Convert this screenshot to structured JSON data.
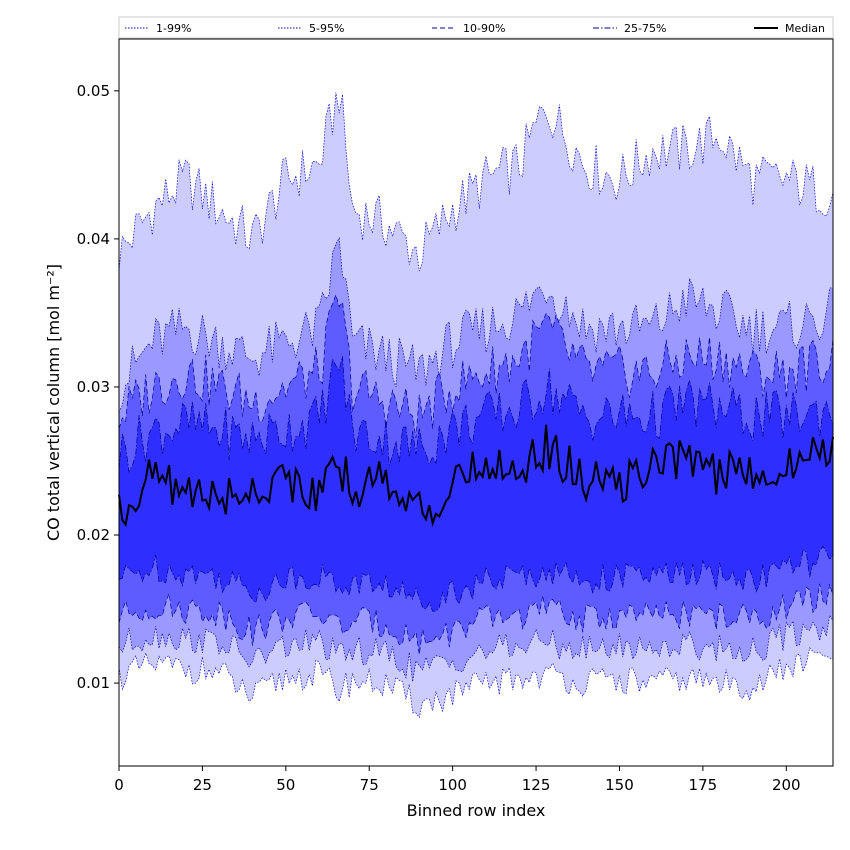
{
  "chart_data": {
    "type": "area",
    "xlabel": "Binned row index",
    "ylabel": "CO total vertical column [mol m⁻²]",
    "xlim": [
      0,
      214
    ],
    "ylim": [
      0.0044,
      0.0535
    ],
    "x_ticks": [
      0,
      25,
      50,
      75,
      100,
      125,
      150,
      175,
      200
    ],
    "x_tick_labels": [
      "0",
      "25",
      "50",
      "75",
      "100",
      "125",
      "150",
      "175",
      "200"
    ],
    "y_ticks": [
      0.01,
      0.02,
      0.03,
      0.04,
      0.05
    ],
    "y_tick_labels": [
      "0.01",
      "0.02",
      "0.03",
      "0.04",
      "0.05"
    ],
    "legend_position": "top",
    "grid": false,
    "x_anchors": [
      0,
      10,
      20,
      30,
      40,
      50,
      60,
      66,
      70,
      80,
      90,
      100,
      110,
      120,
      128,
      140,
      150,
      160,
      170,
      180,
      190,
      200,
      214
    ],
    "bands": [
      {
        "name": "1-99%",
        "fill_color": "#ccccff",
        "line_color": "#0000cc",
        "line_style": "dotted",
        "upper": [
          0.039,
          0.042,
          0.044,
          0.042,
          0.04,
          0.044,
          0.045,
          0.05,
          0.042,
          0.041,
          0.039,
          0.042,
          0.044,
          0.045,
          0.049,
          0.045,
          0.044,
          0.046,
          0.046,
          0.047,
          0.044,
          0.044,
          0.043
        ],
        "lower": [
          0.0105,
          0.0112,
          0.011,
          0.0107,
          0.009,
          0.0104,
          0.0106,
          0.0095,
          0.0102,
          0.0099,
          0.0085,
          0.0092,
          0.01,
          0.0103,
          0.0106,
          0.01,
          0.0102,
          0.01,
          0.0103,
          0.01,
          0.0098,
          0.011,
          0.012
        ]
      },
      {
        "name": "5-95%",
        "fill_color": "#9999ff",
        "line_color": "#0000aa",
        "line_style": "dotted",
        "upper": [
          0.03,
          0.033,
          0.034,
          0.033,
          0.032,
          0.033,
          0.034,
          0.04,
          0.033,
          0.032,
          0.031,
          0.033,
          0.034,
          0.035,
          0.037,
          0.034,
          0.034,
          0.034,
          0.036,
          0.035,
          0.034,
          0.034,
          0.035
        ],
        "lower": [
          0.0125,
          0.0133,
          0.013,
          0.0128,
          0.0115,
          0.0125,
          0.0128,
          0.0117,
          0.0122,
          0.012,
          0.0108,
          0.0115,
          0.0122,
          0.0125,
          0.0128,
          0.0122,
          0.0125,
          0.0124,
          0.0126,
          0.0124,
          0.0122,
          0.0132,
          0.014
        ]
      },
      {
        "name": "10-90%",
        "fill_color": "#5c5cff",
        "line_color": "#000099",
        "line_style": "dashed",
        "upper": [
          0.028,
          0.03,
          0.031,
          0.03,
          0.029,
          0.03,
          0.031,
          0.036,
          0.03,
          0.029,
          0.028,
          0.03,
          0.031,
          0.032,
          0.034,
          0.031,
          0.031,
          0.031,
          0.032,
          0.032,
          0.031,
          0.031,
          0.032
        ],
        "lower": [
          0.0145,
          0.0152,
          0.015,
          0.0148,
          0.0135,
          0.0145,
          0.0147,
          0.0138,
          0.0142,
          0.014,
          0.0128,
          0.0135,
          0.0143,
          0.0146,
          0.015,
          0.0143,
          0.0146,
          0.0145,
          0.0147,
          0.0145,
          0.0143,
          0.0152,
          0.016
        ]
      },
      {
        "name": "25-75%",
        "fill_color": "#2e2eff",
        "line_color": "#000088",
        "line_style": "dashdot",
        "upper": [
          0.0255,
          0.027,
          0.0275,
          0.027,
          0.0265,
          0.0272,
          0.0278,
          0.032,
          0.027,
          0.0265,
          0.0258,
          0.0272,
          0.028,
          0.0285,
          0.03,
          0.028,
          0.028,
          0.028,
          0.029,
          0.0285,
          0.028,
          0.028,
          0.0285
        ],
        "lower": [
          0.017,
          0.0178,
          0.0175,
          0.0172,
          0.0162,
          0.017,
          0.0173,
          0.0165,
          0.0168,
          0.0166,
          0.0155,
          0.0162,
          0.0169,
          0.0172,
          0.0176,
          0.017,
          0.0172,
          0.0172,
          0.0174,
          0.0172,
          0.017,
          0.0178,
          0.0185
        ]
      }
    ],
    "median": {
      "name": "Median",
      "color": "#000000",
      "values": [
        0.0215,
        0.024,
        0.023,
        0.0225,
        0.023,
        0.024,
        0.0225,
        0.0245,
        0.0232,
        0.024,
        0.0215,
        0.023,
        0.025,
        0.0245,
        0.026,
        0.0235,
        0.0235,
        0.0245,
        0.0255,
        0.024,
        0.0245,
        0.0245,
        0.0262
      ]
    }
  }
}
